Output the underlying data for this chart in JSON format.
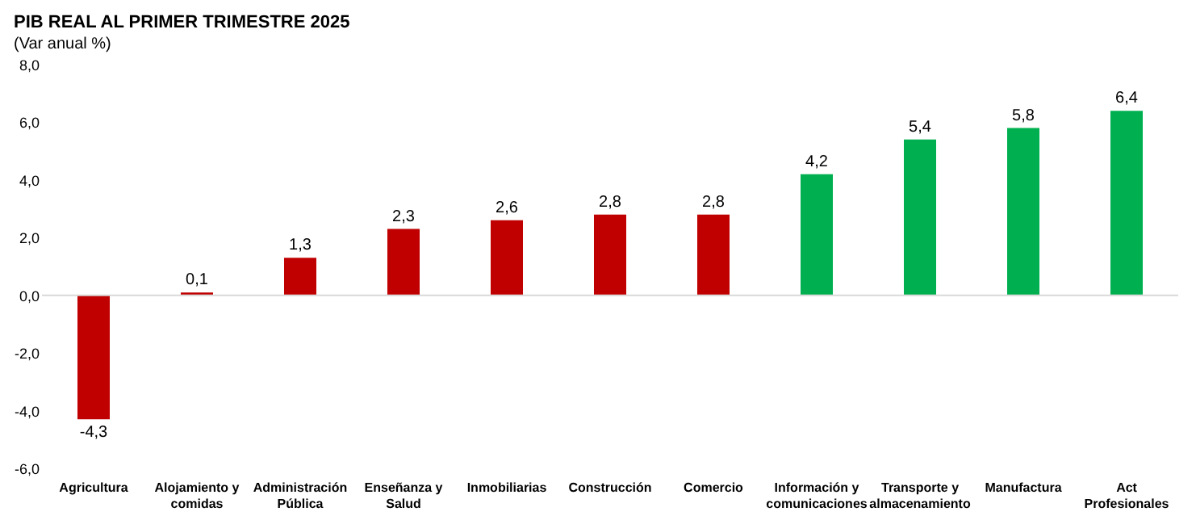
{
  "chart_data": {
    "type": "bar",
    "title": "PIB REAL AL PRIMER TRIMESTRE 2025",
    "subtitle": "(Var anual %)",
    "categories": [
      "Agricultura",
      "Alojamiento y comidas",
      "Administración Pública",
      "Enseñanza y Salud",
      "Inmobiliarias",
      "Construcción",
      "Comercio",
      "Información y comunicaciones",
      "Transporte y almacenamiento",
      "Manufactura",
      "Act Profesionales"
    ],
    "values": [
      -4.3,
      0.1,
      1.3,
      2.3,
      2.6,
      2.8,
      2.8,
      4.2,
      5.4,
      5.8,
      6.4
    ],
    "value_labels": [
      "-4,3",
      "0,1",
      "1,3",
      "2,3",
      "2,6",
      "2,8",
      "2,8",
      "4,2",
      "5,4",
      "5,8",
      "6,4"
    ],
    "colors": [
      "#c00000",
      "#c00000",
      "#c00000",
      "#c00000",
      "#c00000",
      "#c00000",
      "#c00000",
      "#00b050",
      "#00b050",
      "#00b050",
      "#00b050"
    ],
    "ylim": [
      -6,
      8
    ],
    "yticks": [
      {
        "value": -6,
        "label": "-6,0"
      },
      {
        "value": -4,
        "label": "-4,0"
      },
      {
        "value": -2,
        "label": "-2,0"
      },
      {
        "value": 0,
        "label": "0,0"
      },
      {
        "value": 2,
        "label": "2,0"
      },
      {
        "value": 4,
        "label": "4,0"
      },
      {
        "value": 6,
        "label": "6,0"
      },
      {
        "value": 8,
        "label": "8,0"
      }
    ],
    "ref_lines": [
      {
        "axis": "y",
        "value": 0,
        "color": "#d9d9d9"
      }
    ],
    "grid": false
  }
}
